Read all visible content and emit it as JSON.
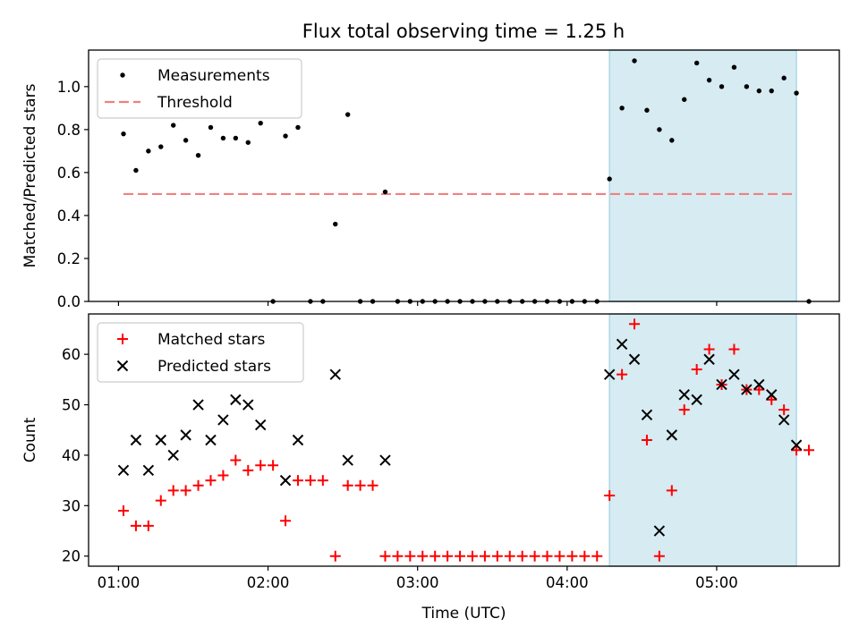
{
  "title": "Flux total observing time = 1.25 h",
  "colors": {
    "measurement": "#000000",
    "threshold": "#f08080",
    "matched": "#ff0000",
    "predicted": "#000000",
    "highlight": "#add8e6"
  },
  "chart_data": [
    {
      "type": "scatter",
      "ylabel": "Matched/Predicted stars",
      "ylim": [
        0,
        1.17
      ],
      "yticks": [
        0.0,
        0.2,
        0.4,
        0.6,
        0.8,
        1.0
      ],
      "xlim_hours": [
        0.8,
        5.82
      ],
      "xticks": [
        1,
        2,
        3,
        4,
        5
      ],
      "grid": false,
      "legend_position": "top-left",
      "highlight_span": [
        "04:17",
        "05:32"
      ],
      "legend": [
        "Measurements",
        "Threshold"
      ],
      "threshold": {
        "value": 0.5,
        "x_start": "01:02",
        "x_end": "05:32"
      },
      "series": [
        {
          "name": "Measurements",
          "marker": "dot",
          "points": [
            [
              "01:02",
              0.78
            ],
            [
              "01:07",
              0.61
            ],
            [
              "01:12",
              0.7
            ],
            [
              "01:17",
              0.72
            ],
            [
              "01:22",
              0.82
            ],
            [
              "01:27",
              0.75
            ],
            [
              "01:32",
              0.68
            ],
            [
              "01:37",
              0.81
            ],
            [
              "01:42",
              0.76
            ],
            [
              "01:47",
              0.76
            ],
            [
              "01:52",
              0.74
            ],
            [
              "01:57",
              0.83
            ],
            [
              "02:02",
              0.0
            ],
            [
              "02:07",
              0.77
            ],
            [
              "02:12",
              0.81
            ],
            [
              "02:17",
              0.0
            ],
            [
              "02:22",
              0.0
            ],
            [
              "02:27",
              0.36
            ],
            [
              "02:32",
              0.87
            ],
            [
              "02:37",
              0.0
            ],
            [
              "02:42",
              0.0
            ],
            [
              "02:47",
              0.51
            ],
            [
              "02:52",
              0.0
            ],
            [
              "02:57",
              0.0
            ],
            [
              "03:02",
              0.0
            ],
            [
              "03:07",
              0.0
            ],
            [
              "03:12",
              0.0
            ],
            [
              "03:17",
              0.0
            ],
            [
              "03:22",
              0.0
            ],
            [
              "03:27",
              0.0
            ],
            [
              "03:32",
              0.0
            ],
            [
              "03:37",
              0.0
            ],
            [
              "03:42",
              0.0
            ],
            [
              "03:47",
              0.0
            ],
            [
              "03:52",
              0.0
            ],
            [
              "03:57",
              0.0
            ],
            [
              "04:02",
              0.0
            ],
            [
              "04:07",
              0.0
            ],
            [
              "04:12",
              0.0
            ],
            [
              "04:17",
              0.57
            ],
            [
              "04:22",
              0.9
            ],
            [
              "04:27",
              1.12
            ],
            [
              "04:32",
              0.89
            ],
            [
              "04:37",
              0.8
            ],
            [
              "04:42",
              0.75
            ],
            [
              "04:47",
              0.94
            ],
            [
              "04:52",
              1.11
            ],
            [
              "04:57",
              1.03
            ],
            [
              "05:02",
              1.0
            ],
            [
              "05:07",
              1.09
            ],
            [
              "05:12",
              1.0
            ],
            [
              "05:17",
              0.98
            ],
            [
              "05:22",
              0.98
            ],
            [
              "05:27",
              1.04
            ],
            [
              "05:32",
              0.97
            ],
            [
              "05:37",
              0.0
            ]
          ]
        }
      ]
    },
    {
      "type": "scatter",
      "xlabel": "Time (UTC)",
      "ylabel": "Count",
      "ylim": [
        18,
        68
      ],
      "yticks": [
        20,
        30,
        40,
        50,
        60
      ],
      "xlim_hours": [
        0.8,
        5.82
      ],
      "xticks": [
        1,
        2,
        3,
        4,
        5
      ],
      "xtick_labels": [
        "01:00",
        "02:00",
        "03:00",
        "04:00",
        "05:00"
      ],
      "grid": false,
      "legend_position": "top-left",
      "highlight_span": [
        "04:17",
        "05:32"
      ],
      "legend": [
        "Matched stars",
        "Predicted stars"
      ],
      "series": [
        {
          "name": "Matched stars",
          "marker": "plus",
          "points": [
            [
              "01:02",
              29
            ],
            [
              "01:07",
              26
            ],
            [
              "01:12",
              26
            ],
            [
              "01:17",
              31
            ],
            [
              "01:22",
              33
            ],
            [
              "01:27",
              33
            ],
            [
              "01:32",
              34
            ],
            [
              "01:37",
              35
            ],
            [
              "01:42",
              36
            ],
            [
              "01:47",
              39
            ],
            [
              "01:52",
              37
            ],
            [
              "01:57",
              38
            ],
            [
              "02:02",
              38
            ],
            [
              "02:07",
              27
            ],
            [
              "02:12",
              35
            ],
            [
              "02:17",
              35
            ],
            [
              "02:22",
              35
            ],
            [
              "02:27",
              20
            ],
            [
              "02:32",
              34
            ],
            [
              "02:37",
              34
            ],
            [
              "02:42",
              34
            ],
            [
              "02:47",
              20
            ],
            [
              "02:52",
              20
            ],
            [
              "02:57",
              20
            ],
            [
              "03:02",
              20
            ],
            [
              "03:07",
              20
            ],
            [
              "03:12",
              20
            ],
            [
              "03:17",
              20
            ],
            [
              "03:22",
              20
            ],
            [
              "03:27",
              20
            ],
            [
              "03:32",
              20
            ],
            [
              "03:37",
              20
            ],
            [
              "03:42",
              20
            ],
            [
              "03:47",
              20
            ],
            [
              "03:52",
              20
            ],
            [
              "03:57",
              20
            ],
            [
              "04:02",
              20
            ],
            [
              "04:07",
              20
            ],
            [
              "04:12",
              20
            ],
            [
              "04:17",
              32
            ],
            [
              "04:22",
              56
            ],
            [
              "04:27",
              66
            ],
            [
              "04:32",
              43
            ],
            [
              "04:37",
              20
            ],
            [
              "04:42",
              33
            ],
            [
              "04:47",
              49
            ],
            [
              "04:52",
              57
            ],
            [
              "04:57",
              61
            ],
            [
              "05:02",
              54
            ],
            [
              "05:07",
              61
            ],
            [
              "05:12",
              53
            ],
            [
              "05:17",
              53
            ],
            [
              "05:22",
              51
            ],
            [
              "05:27",
              49
            ],
            [
              "05:32",
              41
            ],
            [
              "05:37",
              41
            ]
          ]
        },
        {
          "name": "Predicted stars",
          "marker": "x",
          "points": [
            [
              "01:02",
              37
            ],
            [
              "01:07",
              43
            ],
            [
              "01:12",
              37
            ],
            [
              "01:17",
              43
            ],
            [
              "01:22",
              40
            ],
            [
              "01:27",
              44
            ],
            [
              "01:32",
              50
            ],
            [
              "01:37",
              43
            ],
            [
              "01:42",
              47
            ],
            [
              "01:47",
              51
            ],
            [
              "01:52",
              50
            ],
            [
              "01:57",
              46
            ],
            [
              "02:07",
              35
            ],
            [
              "02:12",
              43
            ],
            [
              "02:27",
              56
            ],
            [
              "02:32",
              39
            ],
            [
              "02:47",
              39
            ],
            [
              "04:17",
              56
            ],
            [
              "04:22",
              62
            ],
            [
              "04:27",
              59
            ],
            [
              "04:32",
              48
            ],
            [
              "04:37",
              25
            ],
            [
              "04:42",
              44
            ],
            [
              "04:47",
              52
            ],
            [
              "04:52",
              51
            ],
            [
              "04:57",
              59
            ],
            [
              "05:02",
              54
            ],
            [
              "05:07",
              56
            ],
            [
              "05:12",
              53
            ],
            [
              "05:17",
              54
            ],
            [
              "05:22",
              52
            ],
            [
              "05:27",
              47
            ],
            [
              "05:32",
              42
            ]
          ]
        }
      ]
    }
  ]
}
